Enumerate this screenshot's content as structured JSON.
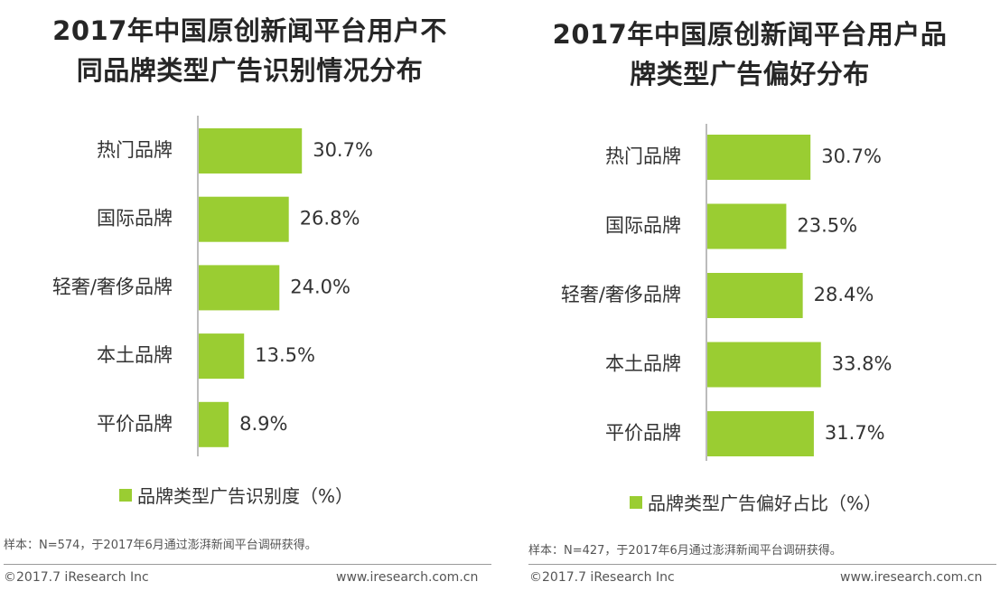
{
  "chart_data": [
    {
      "type": "bar",
      "orientation": "horizontal",
      "title_lines": [
        "2017年中国原创新闻平台用户不",
        "同品牌类型广告识别情况分布"
      ],
      "categories": [
        "热门品牌",
        "国际品牌",
        "轻奢/奢侈品牌",
        "本土品牌",
        "平价品牌"
      ],
      "values": [
        30.7,
        26.8,
        24.0,
        13.5,
        8.9
      ],
      "value_labels": [
        "30.7%",
        "26.8%",
        "24.0%",
        "13.5%",
        "8.9%"
      ],
      "xlim": [
        0,
        50
      ],
      "legend": "品牌类型广告识别度（%）",
      "note": "样本：N=574，于2017年6月通过澎湃新闻平台调研获得。",
      "footer_left": "©2017.7 iResearch Inc",
      "footer_right": "www.iresearch.com.cn"
    },
    {
      "type": "bar",
      "orientation": "horizontal",
      "title_lines": [
        "2017年中国原创新闻平台用户品",
        "牌类型广告偏好分布"
      ],
      "categories": [
        "热门品牌",
        "国际品牌",
        "轻奢/奢侈品牌",
        "本土品牌",
        "平价品牌"
      ],
      "values": [
        30.7,
        23.5,
        28.4,
        33.8,
        31.7
      ],
      "value_labels": [
        "30.7%",
        "23.5%",
        "28.4%",
        "33.8%",
        "31.7%"
      ],
      "xlim": [
        0,
        50
      ],
      "legend": "品牌类型广告偏好占比（%）",
      "note": "样本：N=427，于2017年6月通过澎湃新闻平台调研获得。",
      "footer_left": "©2017.7 iResearch Inc",
      "footer_right": "www.iresearch.com.cn"
    }
  ],
  "colors": {
    "bar": "#9acd32",
    "axis": "#a6a6a6"
  }
}
